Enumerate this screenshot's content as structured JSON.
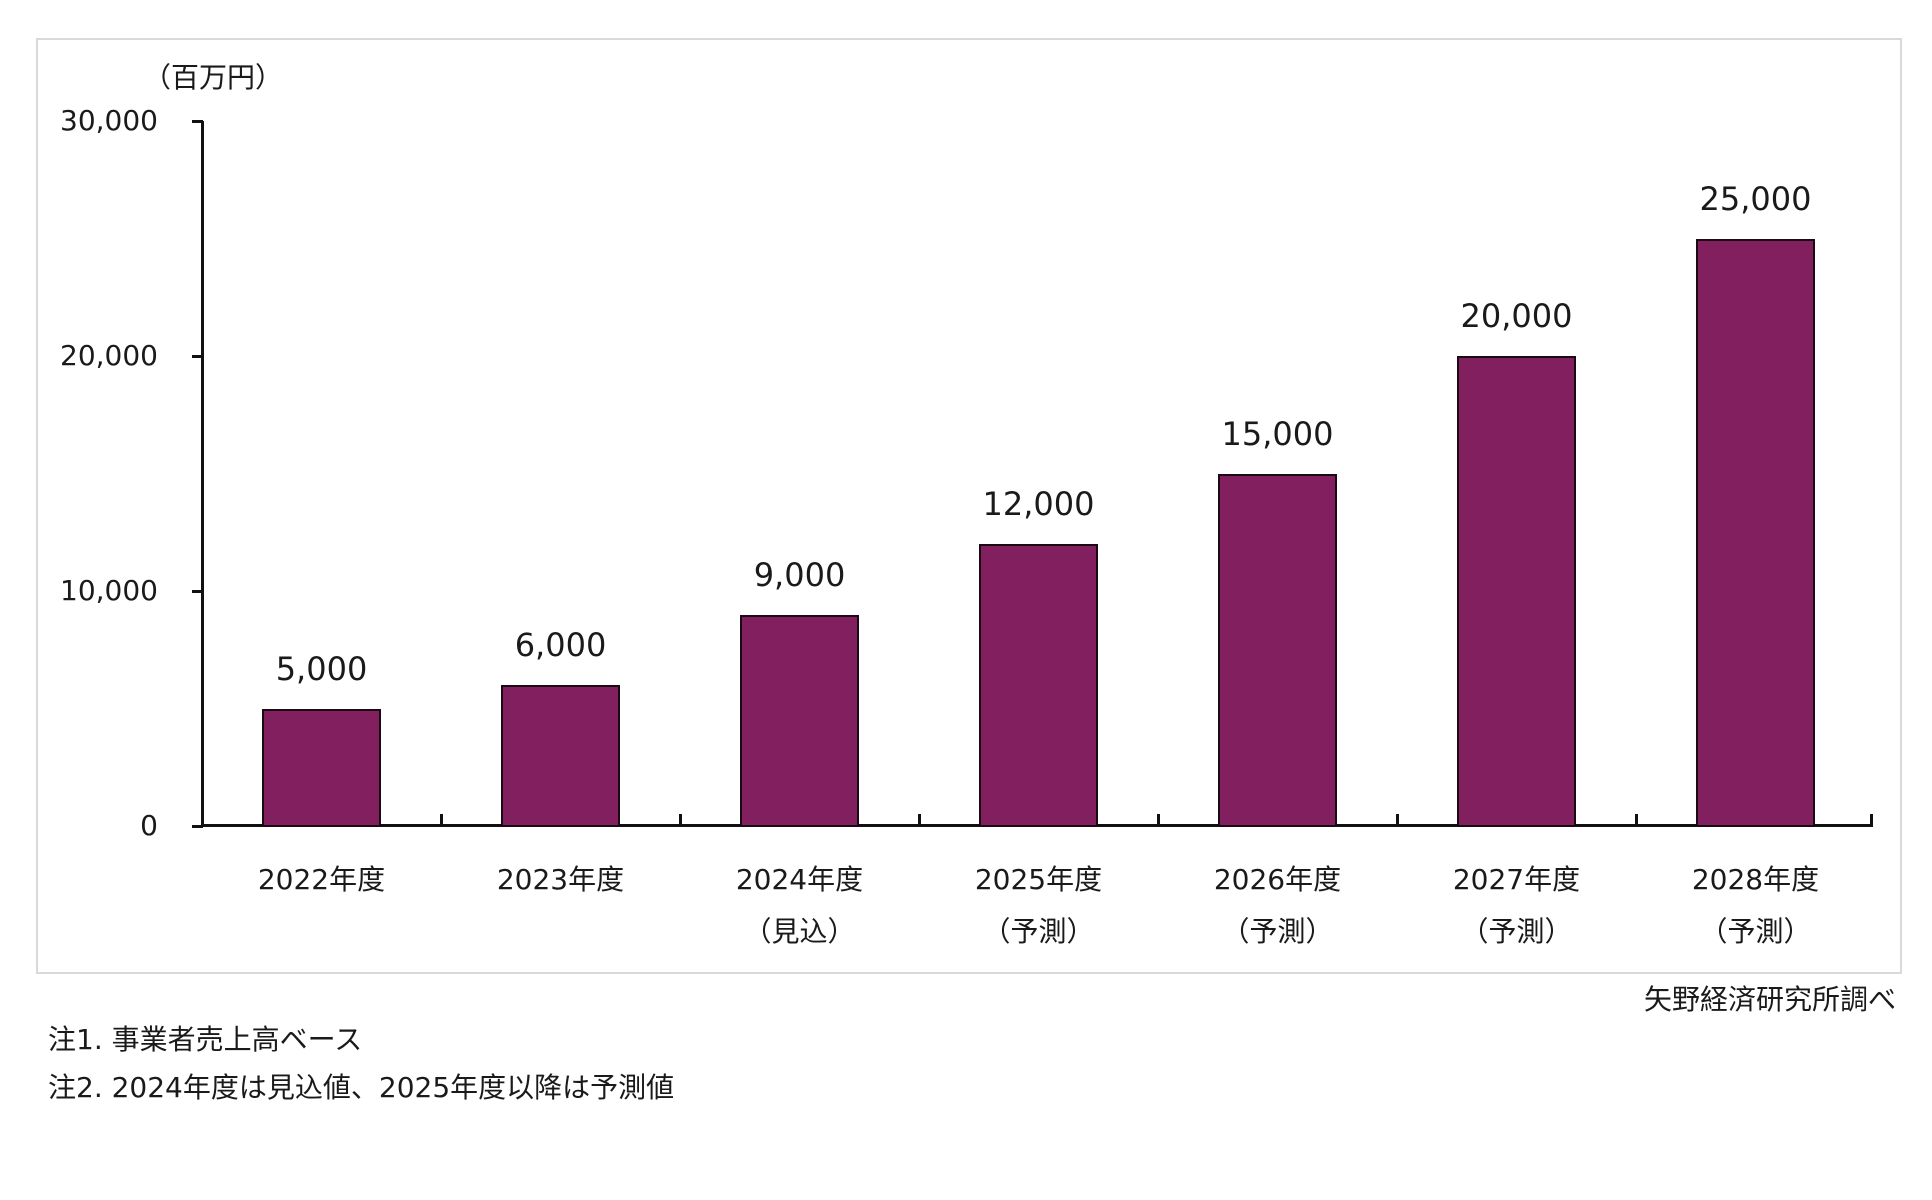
{
  "chart_data": {
    "type": "bar",
    "title": "",
    "ylabel": "（百万円）",
    "xlabel": "",
    "ylim": [
      0,
      30000
    ],
    "yticks": [
      "0",
      "10,000",
      "20,000",
      "30,000"
    ],
    "grid": false,
    "legend": null,
    "categories": [
      "2022年度",
      "2023年度",
      "2024年度（見込）",
      "2025年度（予測）",
      "2026年度（予測）",
      "2027年度（予測）",
      "2028年度（予測）"
    ],
    "category_lines": [
      [
        "2022年度",
        ""
      ],
      [
        "2023年度",
        ""
      ],
      [
        "2024年度",
        "（見込）"
      ],
      [
        "2025年度",
        "（予測）"
      ],
      [
        "2026年度",
        "（予測）"
      ],
      [
        "2027年度",
        "（予測）"
      ],
      [
        "2028年度",
        "（予測）"
      ]
    ],
    "values": [
      5000,
      6000,
      9000,
      12000,
      15000,
      20000,
      25000
    ],
    "value_labels": [
      "5,000",
      "6,000",
      "9,000",
      "12,000",
      "15,000",
      "20,000",
      "25,000"
    ],
    "bar_color": "#82205f"
  },
  "source": "矢野経済研究所調べ",
  "notes": [
    "注1.  事業者売上高ベース",
    "注2.  2024年度は見込値、2025年度以降は予測値"
  ]
}
